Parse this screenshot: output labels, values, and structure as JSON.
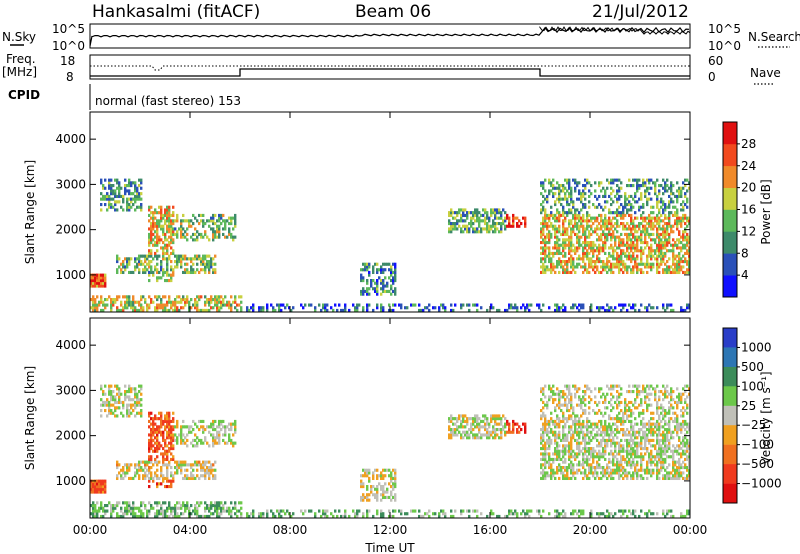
{
  "header": {
    "station": "Hankasalmi (fitACF)",
    "beam": "Beam 06",
    "date": "21/Jul/2012"
  },
  "top_panels": {
    "nsky_label": "N.Sky",
    "nsearch_label": "N.Search",
    "noise_ticks_left": [
      "10^5",
      "10^0"
    ],
    "noise_ticks_right": [
      "10^5",
      "10^0"
    ],
    "freq_label_1": "Freq.",
    "freq_label_2": "[MHz]",
    "freq_ticks": [
      "18",
      "8"
    ],
    "nave_label": "Nave",
    "nave_ticks": [
      "60",
      "0"
    ],
    "cpid_label": "CPID",
    "cpid_text": "normal (fast stereo) 153"
  },
  "chart_data": [
    {
      "type": "heatmap",
      "name": "power-panel",
      "ylabel": "Slant Range [km]",
      "x_ticks": [
        "00:00",
        "04:00",
        "08:00",
        "12:00",
        "16:00",
        "20:00",
        "00:00"
      ],
      "y_ticks": [
        1000,
        2000,
        3000,
        4000
      ],
      "ylim": [
        180,
        4600
      ],
      "xlim_hours": [
        0,
        24
      ],
      "colorbar": {
        "label": "Power [dB]",
        "ticks": [
          "28",
          "24",
          "20",
          "16",
          "12",
          "8",
          "4"
        ],
        "colors": [
          "#1010ff",
          "#2a50b8",
          "#3d8a6a",
          "#5cb85a",
          "#c8d040",
          "#f08a2a",
          "#f24a1e",
          "#e01010"
        ]
      }
    },
    {
      "type": "heatmap",
      "name": "velocity-panel",
      "ylabel": "Slant Range [km]",
      "xlabel": "Time UT",
      "x_ticks": [
        "00:00",
        "04:00",
        "08:00",
        "12:00",
        "16:00",
        "20:00",
        "00:00"
      ],
      "y_ticks": [
        1000,
        2000,
        3000,
        4000
      ],
      "ylim": [
        180,
        4600
      ],
      "xlim_hours": [
        0,
        24
      ],
      "colorbar": {
        "label": "Velocity [m s⁻¹]",
        "ticks": [
          "1000",
          "500",
          "100",
          "25",
          "−25",
          "−100",
          "−500",
          "−1000"
        ],
        "colors": [
          "#2a3ec8",
          "#2d76b4",
          "#3c8c5a",
          "#6cc84a",
          "#c0c0b8",
          "#f0a020",
          "#f07020",
          "#f03a1e",
          "#e01010"
        ]
      }
    }
  ]
}
